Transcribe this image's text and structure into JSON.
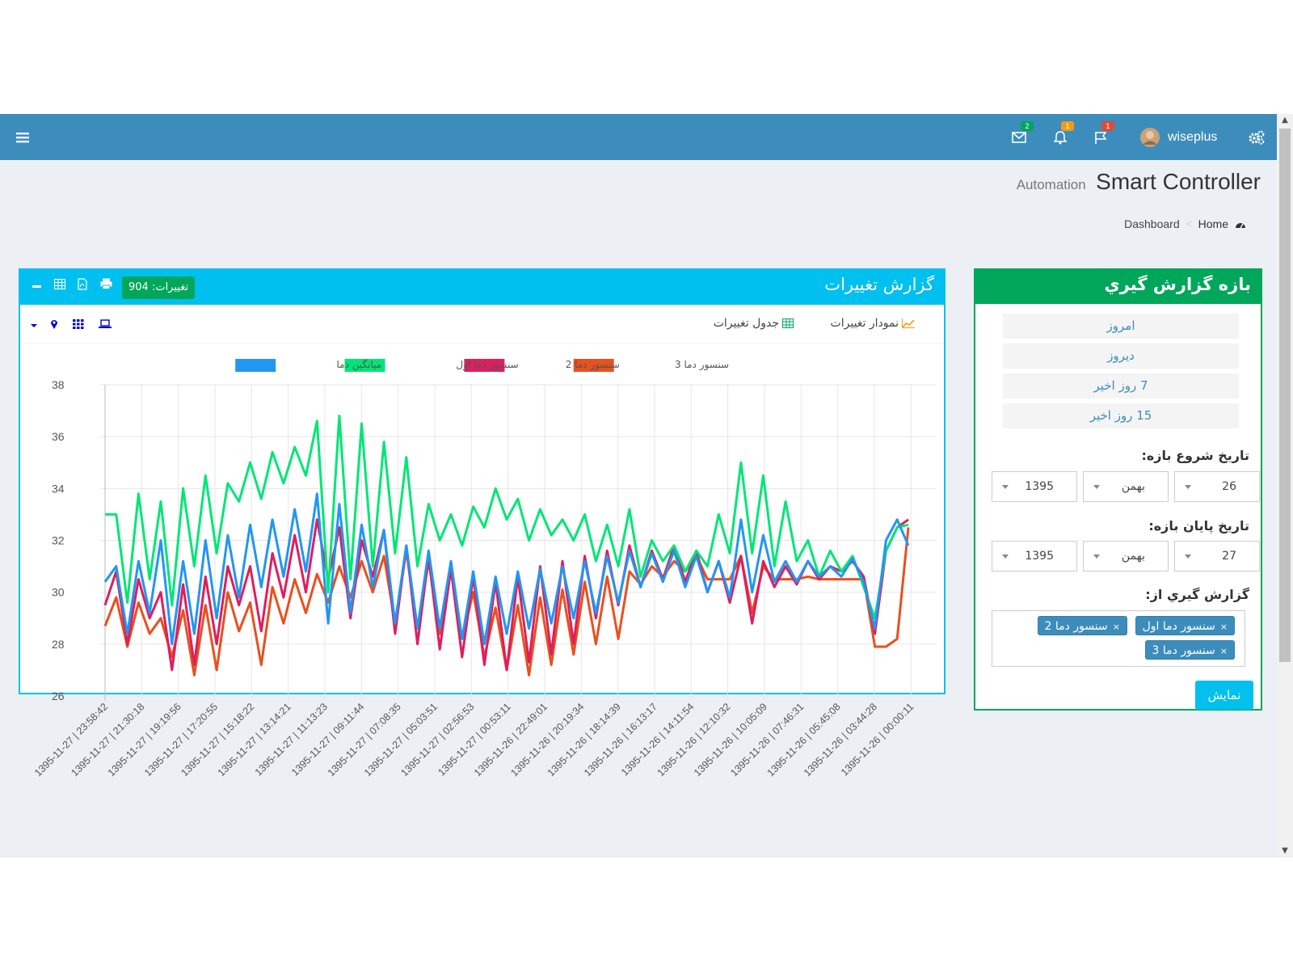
{
  "topbar": {
    "username": "wiseplus",
    "mail_count": "2",
    "notif_count": "1",
    "flag_count": "1",
    "colors": {
      "bar": "#3c8dbc",
      "mail_badge": "#00a65a",
      "notif_badge": "#f39c12",
      "flag_badge": "#dd4b39"
    }
  },
  "header": {
    "title": "Smart Controller",
    "subtitle": "Automation"
  },
  "breadcrumb": {
    "home": "Home",
    "current": "Dashboard"
  },
  "range_panel": {
    "title": "بازه گزارش گيري",
    "quick": [
      "امروز",
      "ديروز",
      "7 روز اخير",
      "15 روز اخير"
    ],
    "start_label": "تاريخ شروع بازه:",
    "start": {
      "day": "26",
      "month": "بهمن",
      "year": "1395"
    },
    "end_label": "تاريخ پايان بازه:",
    "end": {
      "day": "27",
      "month": "بهمن",
      "year": "1395"
    },
    "source_label": "گزارش گيري از:",
    "tags": [
      "سنسور دما اول",
      "سنسور دما 2",
      "سنسور دما 3"
    ],
    "tag_remove": "×",
    "show_button": "نمايش"
  },
  "chart_panel": {
    "title": "گزارش تغييرات",
    "changes_badge": "تغييرات: 904",
    "tab_chart": "نمودار تغييرات",
    "tab_table": "جدول تغييرات"
  },
  "chart_data": {
    "type": "line",
    "legend_position": "top-center",
    "grid": true,
    "ylim": [
      26,
      38
    ],
    "yticks": [
      26,
      28,
      30,
      32,
      34,
      36,
      38
    ],
    "x_tick_labels": [
      "1395-11-27 | 23:58:42",
      "1395-11-27 | 21:30:18",
      "1395-11-27 | 19:19:56",
      "1395-11-27 | 17:20:55",
      "1395-11-27 | 15:18:22",
      "1395-11-27 | 13:14:21",
      "1395-11-27 | 11:13:23",
      "1395-11-27 | 09:11:44",
      "1395-11-27 | 07:08:35",
      "1395-11-27 | 05:03:51",
      "1395-11-27 | 02:56:53",
      "1395-11-27 | 00:53:11",
      "1395-11-26 | 22:49:01",
      "1395-11-26 | 20:19:34",
      "1395-11-26 | 18:14:39",
      "1395-11-26 | 16:13:17",
      "1395-11-26 | 14:11:54",
      "1395-11-26 | 12:10:32",
      "1395-11-26 | 10:05:09",
      "1395-11-26 | 07:46:31",
      "1395-11-26 | 05:45:08",
      "1395-11-26 | 03:44:28",
      "1395-11-26 | 00:00:11"
    ],
    "series": [
      {
        "name": "سنسور دما 3",
        "color": "#e8501e",
        "values": [
          28.7,
          29.8,
          27.9,
          29.6,
          28.4,
          29.0,
          27.5,
          29.3,
          26.8,
          29.5,
          27.0,
          30.0,
          28.5,
          29.6,
          27.2,
          30.2,
          28.8,
          30.5,
          29.2,
          30.7,
          29.6,
          31.0,
          29.8,
          31.2,
          30.0,
          31.4,
          28.8,
          31.6,
          28.6,
          31.2,
          28.4,
          30.9,
          28.2,
          30.0,
          27.5,
          29.4,
          27.0,
          29.5,
          26.8,
          29.8,
          27.2,
          30.1,
          27.6,
          30.4,
          28.0,
          30.6,
          28.2,
          30.8,
          30.3,
          31.0,
          30.6,
          31.2,
          30.8,
          31.4,
          30.5,
          30.5,
          30.5,
          31.4,
          29.2,
          31.0,
          30.5,
          30.5,
          30.5,
          30.6,
          30.5,
          30.5,
          30.5,
          30.5,
          30.5,
          27.9,
          27.9,
          28.2,
          32.5
        ]
      },
      {
        "name": "سنسور دما 2",
        "color": "#dd1f5e",
        "values": [
          29.5,
          30.8,
          28.0,
          30.5,
          29.0,
          30.0,
          27.0,
          30.3,
          27.2,
          30.6,
          28.0,
          31.0,
          29.5,
          31.0,
          28.5,
          31.5,
          29.8,
          32.2,
          30.0,
          32.8,
          30.5,
          32.5,
          29.0,
          32.0,
          30.6,
          32.4,
          28.4,
          31.8,
          28.0,
          31.4,
          27.8,
          30.9,
          27.5,
          30.6,
          27.2,
          30.4,
          27.0,
          30.6,
          27.3,
          31.0,
          27.6,
          31.2,
          28.0,
          31.4,
          29.0,
          31.6,
          29.5,
          31.8,
          30.2,
          31.6,
          30.5,
          31.8,
          30.4,
          31.6,
          30.0,
          31.2,
          29.6,
          31.4,
          28.8,
          31.2,
          30.2,
          31.0,
          30.3,
          31.2,
          30.5,
          31.0,
          30.8,
          31.2,
          30.6,
          28.4,
          31.6,
          32.5,
          32.8
        ]
      },
      {
        "name": "سنسور دما اول",
        "color": "#00e676",
        "values": [
          33.0,
          33.0,
          29.6,
          33.8,
          30.5,
          33.5,
          29.5,
          34.0,
          31.0,
          34.5,
          31.5,
          34.2,
          33.5,
          35.0,
          33.6,
          35.4,
          34.2,
          35.6,
          34.5,
          36.6,
          30.0,
          36.8,
          30.5,
          36.5,
          31.0,
          35.8,
          31.5,
          35.2,
          31.0,
          33.4,
          32.0,
          33.0,
          31.8,
          33.3,
          32.5,
          34.0,
          32.8,
          33.6,
          32.0,
          33.2,
          32.2,
          32.8,
          32.0,
          33.0,
          31.2,
          32.6,
          31.0,
          33.2,
          30.6,
          32.0,
          31.2,
          31.8,
          30.8,
          31.6,
          31.0,
          33.0,
          31.5,
          35.0,
          31.5,
          34.5,
          31.0,
          33.5,
          31.2,
          32.0,
          30.6,
          31.6,
          30.8,
          31.4,
          30.2,
          29.0,
          31.6,
          32.5,
          32.6
        ]
      },
      {
        "name": "ميانگين دما",
        "color": "#2196f3",
        "values": [
          30.4,
          31.0,
          28.4,
          31.2,
          29.2,
          32.0,
          28.0,
          31.2,
          28.4,
          32.0,
          29.0,
          32.2,
          29.8,
          32.6,
          30.2,
          32.8,
          30.6,
          33.2,
          30.8,
          33.8,
          28.8,
          33.4,
          29.2,
          32.6,
          30.2,
          32.4,
          28.8,
          31.8,
          28.6,
          31.6,
          28.6,
          31.2,
          28.2,
          30.8,
          28.0,
          30.6,
          28.4,
          30.8,
          28.6,
          30.9,
          28.8,
          31.0,
          29.0,
          31.2,
          29.2,
          31.4,
          29.6,
          31.6,
          30.2,
          31.5,
          30.4,
          31.6,
          30.2,
          31.4,
          30.0,
          31.2,
          29.8,
          32.8,
          30.0,
          32.2,
          30.4,
          31.2,
          30.4,
          31.2,
          30.6,
          31.0,
          30.6,
          31.3,
          30.4,
          28.6,
          32.0,
          32.8,
          31.8
        ]
      }
    ]
  }
}
